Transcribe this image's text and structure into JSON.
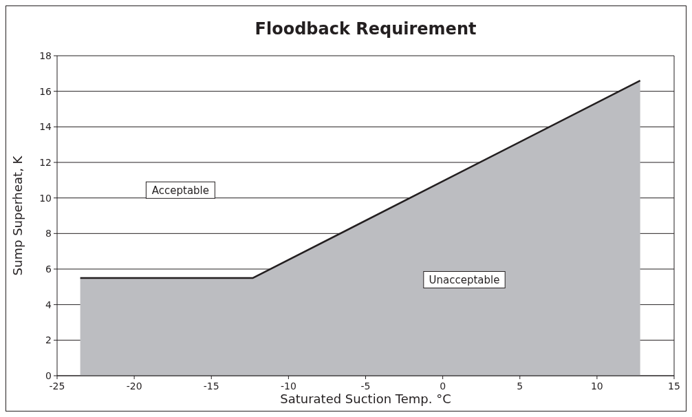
{
  "chart_data": {
    "type": "area",
    "title": "Floodback Requirement",
    "xlabel": "Saturated Suction Temp. °C",
    "ylabel": "Sump Superheat, K",
    "x": [
      -23.5,
      -12.3,
      12.8
    ],
    "series": [
      {
        "color": "#bcbdc1",
        "values": [
          5.5,
          5.5,
          16.6
        ]
      }
    ],
    "xlim": [
      -25,
      15
    ],
    "xticks": [
      -25,
      -20,
      -15,
      -10,
      -5,
      0,
      5,
      10,
      15
    ],
    "ylim": [
      0,
      18
    ],
    "yticks": [
      0,
      2,
      4,
      6,
      8,
      10,
      12,
      14,
      16,
      18
    ],
    "grid": "y",
    "annotations": [
      "Acceptable",
      "Unacceptable"
    ]
  }
}
